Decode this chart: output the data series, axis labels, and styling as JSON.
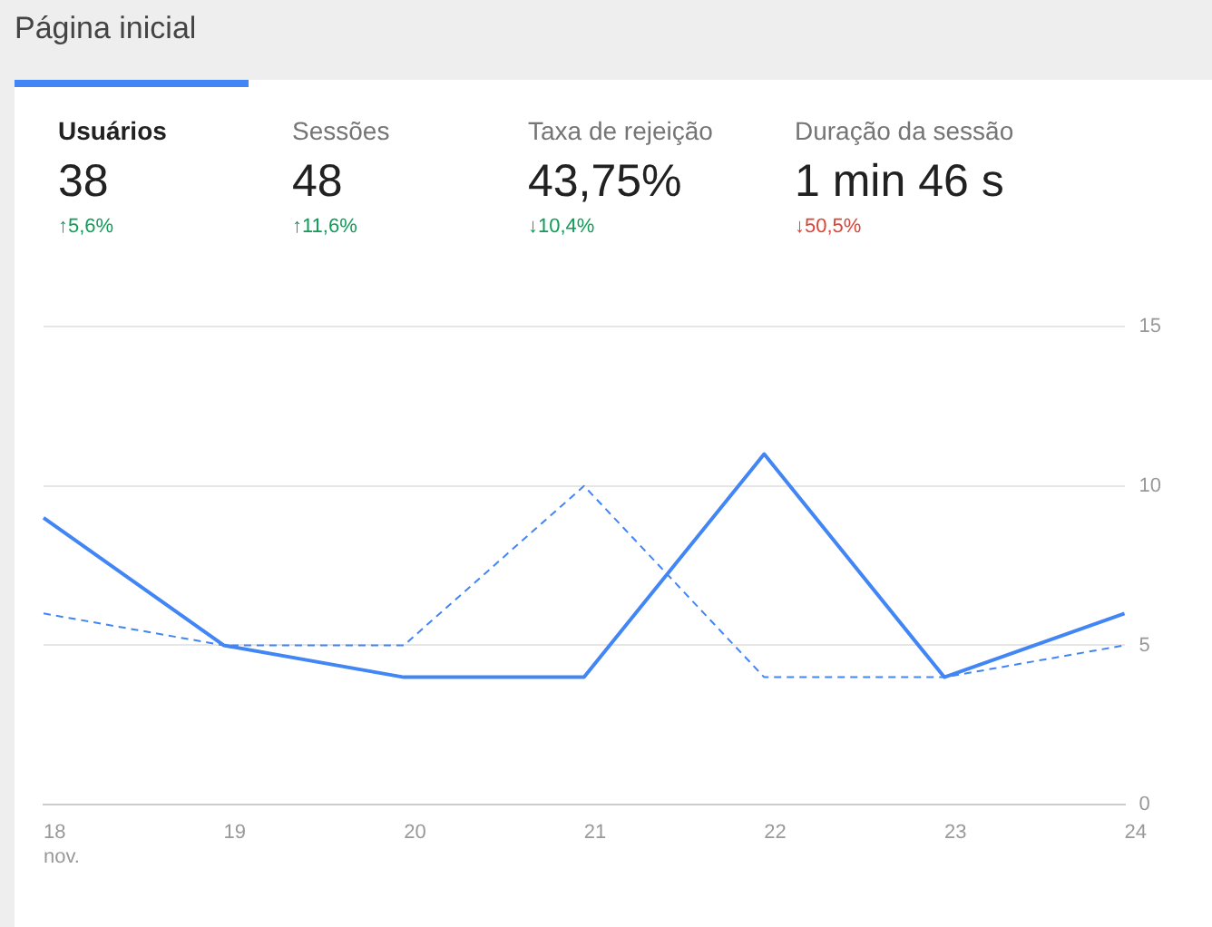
{
  "chart_data": [
    {
      "type": "other",
      "title": "Página inicial",
      "annotations": [
        "Usuários",
        "38",
        "↑5,6%",
        "Sessões",
        "48",
        "↑11,6%",
        "Taxa de rejeição",
        "43,75%",
        "↓10,4%",
        "Duração da sessão",
        "1 min 46 s",
        "↓50,5%"
      ],
      "colors": [
        "#212121",
        "#212121",
        "#0f9d58",
        "#757575",
        "#212121",
        "#0f9d58",
        "#757575",
        "#212121",
        "#0f9d58",
        "#757575",
        "#212121",
        "#db4437"
      ]
    },
    {
      "type": "line",
      "categories": [
        "18 nov.",
        "19",
        "20",
        "21",
        "22",
        "23",
        "24"
      ],
      "series": [
        {
          "color": "#4285f4",
          "values": [
            9,
            5,
            4,
            4,
            11,
            4,
            6
          ],
          "line_style": "solid"
        },
        {
          "color": "#4285f4",
          "values": [
            6,
            5,
            5,
            10,
            4,
            4,
            5
          ],
          "line_style": "dashed"
        }
      ],
      "ylim": [
        0,
        15
      ],
      "yticks": [
        0,
        5,
        10,
        15
      ],
      "grid": "y",
      "legend": false,
      "marker": "none"
    }
  ]
}
